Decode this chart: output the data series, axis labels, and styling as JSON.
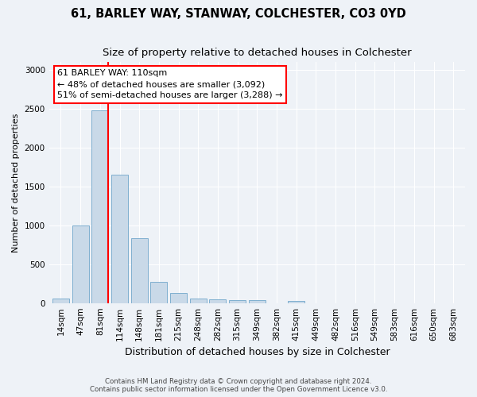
{
  "title": "61, BARLEY WAY, STANWAY, COLCHESTER, CO3 0YD",
  "subtitle": "Size of property relative to detached houses in Colchester",
  "xlabel": "Distribution of detached houses by size in Colchester",
  "ylabel": "Number of detached properties",
  "footer_line1": "Contains HM Land Registry data © Crown copyright and database right 2024.",
  "footer_line2": "Contains public sector information licensed under the Open Government Licence v3.0.",
  "categories": [
    "14sqm",
    "47sqm",
    "81sqm",
    "114sqm",
    "148sqm",
    "181sqm",
    "215sqm",
    "248sqm",
    "282sqm",
    "315sqm",
    "349sqm",
    "382sqm",
    "415sqm",
    "449sqm",
    "482sqm",
    "516sqm",
    "549sqm",
    "583sqm",
    "616sqm",
    "650sqm",
    "683sqm"
  ],
  "values": [
    60,
    1000,
    2480,
    1650,
    830,
    270,
    130,
    60,
    50,
    40,
    40,
    0,
    30,
    0,
    0,
    0,
    0,
    0,
    0,
    0,
    0
  ],
  "bar_color": "#c9d9e8",
  "bar_edge_color": "#7fafd0",
  "property_line_label": "61 BARLEY WAY: 110sqm",
  "annotation_line1": "← 48% of detached houses are smaller (3,092)",
  "annotation_line2": "51% of semi-detached houses are larger (3,288) →",
  "annotation_box_color": "white",
  "annotation_border_color": "red",
  "vline_color": "red",
  "vline_x_index": 2.42,
  "ylim": [
    0,
    3100
  ],
  "yticks": [
    0,
    500,
    1000,
    1500,
    2000,
    2500,
    3000
  ],
  "title_fontsize": 10.5,
  "subtitle_fontsize": 9.5,
  "xlabel_fontsize": 9,
  "ylabel_fontsize": 8,
  "tick_fontsize": 7.5,
  "annotation_fontsize": 8,
  "bg_color": "#eef2f7",
  "grid_color": "white"
}
